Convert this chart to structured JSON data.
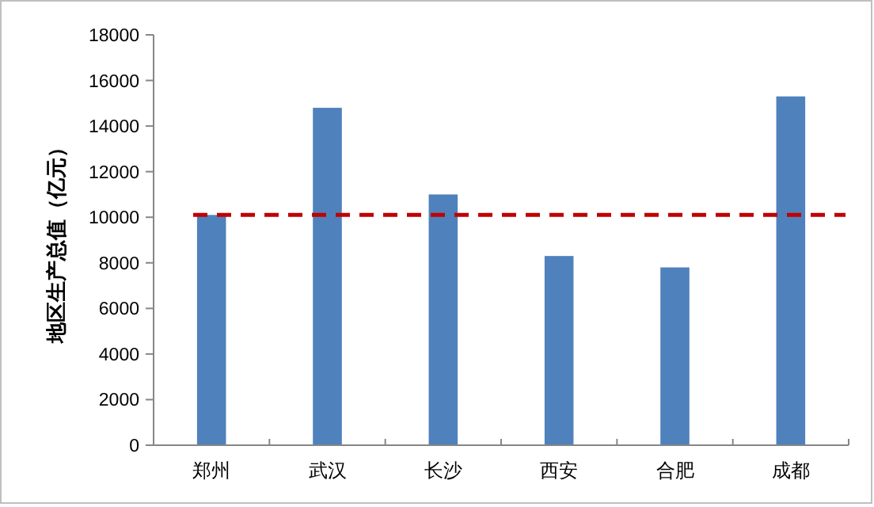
{
  "chart_data": {
    "type": "bar",
    "ylabel": "地区生产总值（亿元）",
    "categories": [
      "郑州",
      "武汉",
      "长沙",
      "西安",
      "合肥",
      "成都"
    ],
    "values": [
      10100,
      14800,
      11000,
      8300,
      7800,
      15300
    ],
    "color": "#4f81bd",
    "ylim": [
      0,
      18000
    ],
    "yticks": [
      0,
      2000,
      4000,
      6000,
      8000,
      10000,
      12000,
      14000,
      16000,
      18000
    ],
    "grid": false,
    "ref_lines": [
      {
        "axis": "y",
        "value": 10100,
        "color": "#c00000",
        "line_style": "dashed"
      }
    ]
  }
}
